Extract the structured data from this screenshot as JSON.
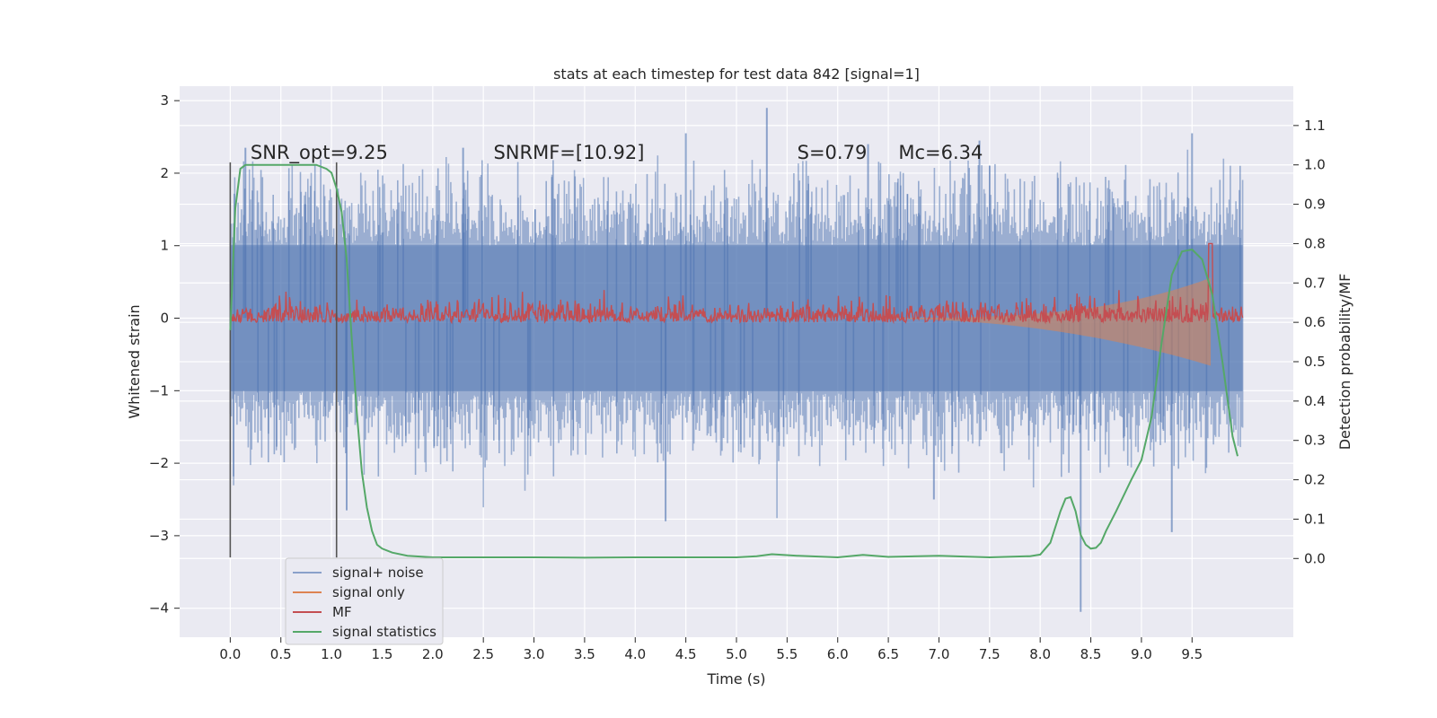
{
  "chart_data": {
    "type": "line",
    "title": "stats at each timestep for test data 842 [signal=1]",
    "xlabel": "Time (s)",
    "ylabel_left": "Whitened strain",
    "ylabel_right": "Detection probability/MF",
    "xlim": [
      -0.5,
      10.5
    ],
    "ylim_left": [
      -4.4,
      3.2
    ],
    "ylim_right": [
      -0.2,
      1.2
    ],
    "x_ticks": [
      "0.0",
      "0.5",
      "1.0",
      "1.5",
      "2.0",
      "2.5",
      "3.0",
      "3.5",
      "4.0",
      "4.5",
      "5.0",
      "5.5",
      "6.0",
      "6.5",
      "7.0",
      "7.5",
      "8.0",
      "8.5",
      "9.0",
      "9.5"
    ],
    "x_tick_values": [
      0.0,
      0.5,
      1.0,
      1.5,
      2.0,
      2.5,
      3.0,
      3.5,
      4.0,
      4.5,
      5.0,
      5.5,
      6.0,
      6.5,
      7.0,
      7.5,
      8.0,
      8.5,
      9.0,
      9.5
    ],
    "y_left_ticks": [
      "3",
      "2",
      "1",
      "0",
      "−1",
      "−2",
      "−3",
      "−4"
    ],
    "y_left_tick_values": [
      3,
      2,
      1,
      0,
      -1,
      -2,
      -3,
      -4
    ],
    "y_right_ticks": [
      "1.1",
      "1.0",
      "0.9",
      "0.8",
      "0.7",
      "0.6",
      "0.5",
      "0.4",
      "0.3",
      "0.2",
      "0.1",
      "0.0"
    ],
    "y_right_tick_values": [
      1.1,
      1.0,
      0.9,
      0.8,
      0.7,
      0.6,
      0.5,
      0.4,
      0.3,
      0.2,
      0.1,
      0.0
    ],
    "grid": true,
    "legend_position": "lower-left",
    "annotations": [
      {
        "text": "SNR_opt=9.25",
        "x": 0.2
      },
      {
        "text": "SNRMF=[10.92]",
        "x": 2.6
      },
      {
        "text": "S=0.79",
        "x": 5.6
      },
      {
        "text": "Mc=6.34",
        "x": 6.6
      }
    ],
    "annotation_y_left": 2.2,
    "vertical_markers": [
      {
        "x": 0.0,
        "y_from": -3.3,
        "y_to": 2.15
      },
      {
        "x": 1.05,
        "y_from": -3.3,
        "y_to": 2.15
      }
    ],
    "series": [
      {
        "name": "signal+ noise",
        "color": "#4c72b0",
        "kind": "noise",
        "x_range": [
          0.0,
          10.0
        ],
        "envelope_pos": 1.4,
        "envelope_neg": -1.4,
        "spikes": [
          {
            "x": 0.15,
            "y": 2.35
          },
          {
            "x": 2.3,
            "y": 2.35
          },
          {
            "x": 4.5,
            "y": 2.55
          },
          {
            "x": 5.3,
            "y": 2.9
          },
          {
            "x": 6.3,
            "y": 2.4
          },
          {
            "x": 7.4,
            "y": 2.45
          },
          {
            "x": 9.5,
            "y": 2.55
          },
          {
            "x": 1.15,
            "y": -2.65
          },
          {
            "x": 4.3,
            "y": -2.8
          },
          {
            "x": 8.4,
            "y": -4.05
          },
          {
            "x": 9.3,
            "y": -2.95
          },
          {
            "x": 6.95,
            "y": -2.5
          }
        ]
      },
      {
        "name": "signal only",
        "color": "#dd8452",
        "kind": "chirp",
        "x_range": [
          6.3,
          9.68
        ],
        "amp_left_max": 0.55,
        "amp_left_min_neg": -0.65
      },
      {
        "name": "MF",
        "color": "#c44e52",
        "kind": "mf",
        "x_range": [
          0.0,
          10.0
        ],
        "baseline_right": 0.61,
        "noise_amp_right": 0.04,
        "peak_x": 9.68,
        "peak_right": 0.8
      },
      {
        "name": "signal statistics",
        "color": "#55a868",
        "kind": "line",
        "x": [
          0.0,
          0.05,
          0.1,
          0.15,
          0.2,
          0.3,
          0.5,
          0.7,
          0.85,
          0.95,
          1.0,
          1.05,
          1.1,
          1.15,
          1.2,
          1.25,
          1.3,
          1.35,
          1.4,
          1.45,
          1.5,
          1.6,
          1.75,
          2.0,
          2.5,
          3.0,
          3.5,
          4.0,
          4.5,
          5.0,
          5.2,
          5.35,
          5.6,
          6.0,
          6.25,
          6.5,
          7.0,
          7.5,
          7.9,
          8.0,
          8.1,
          8.2,
          8.25,
          8.3,
          8.35,
          8.4,
          8.45,
          8.5,
          8.55,
          8.6,
          8.65,
          8.75,
          8.9,
          9.0,
          9.1,
          9.2,
          9.3,
          9.4,
          9.5,
          9.6,
          9.7,
          9.8,
          9.9,
          9.95
        ],
        "y_right": [
          0.58,
          0.89,
          0.99,
          1.0,
          1.0,
          1.0,
          1.0,
          1.0,
          1.0,
          0.99,
          0.98,
          0.94,
          0.88,
          0.76,
          0.56,
          0.37,
          0.22,
          0.13,
          0.07,
          0.035,
          0.025,
          0.015,
          0.007,
          0.003,
          0.003,
          0.003,
          0.002,
          0.003,
          0.003,
          0.003,
          0.006,
          0.011,
          0.007,
          0.003,
          0.009,
          0.004,
          0.007,
          0.003,
          0.006,
          0.01,
          0.04,
          0.12,
          0.152,
          0.156,
          0.12,
          0.06,
          0.035,
          0.025,
          0.027,
          0.04,
          0.07,
          0.12,
          0.2,
          0.25,
          0.36,
          0.55,
          0.72,
          0.78,
          0.785,
          0.76,
          0.67,
          0.5,
          0.31,
          0.26
        ]
      }
    ]
  }
}
